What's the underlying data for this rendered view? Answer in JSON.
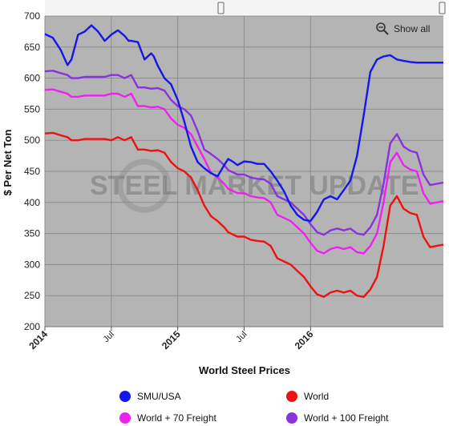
{
  "chart_data": {
    "type": "line",
    "title": "World Steel Prices",
    "xlabel": "World Steel Prices",
    "ylabel": "$ Per Net Ton",
    "ylim": [
      200,
      700
    ],
    "yticks": [
      200,
      250,
      300,
      350,
      400,
      450,
      500,
      550,
      600,
      650,
      700
    ],
    "xlim": [
      2014.0,
      2017.0
    ],
    "xticks": [
      {
        "label": "2014",
        "value": 2014.0,
        "major": true
      },
      {
        "label": "Jul",
        "value": 2014.5,
        "major": false
      },
      {
        "label": "2015",
        "value": 2015.0,
        "major": true
      },
      {
        "label": "Jul",
        "value": 2015.5,
        "major": false
      },
      {
        "label": "2016",
        "value": 2016.0,
        "major": true
      }
    ],
    "grid": true,
    "legend_position": "bottom",
    "watermark": "STEEL MARKET UPDATE",
    "zoom_button_label": "Show all",
    "series": [
      {
        "name": "SMU/USA",
        "color": "#1515ee",
        "x": [
          2014.0,
          2014.06,
          2014.12,
          2014.17,
          2014.2,
          2014.25,
          2014.3,
          2014.35,
          2014.4,
          2014.45,
          2014.5,
          2014.55,
          2014.6,
          2014.63,
          2014.65,
          2014.7,
          2014.75,
          2014.8,
          2014.82,
          2014.85,
          2014.9,
          2014.95,
          2015.0,
          2015.05,
          2015.1,
          2015.15,
          2015.2,
          2015.25,
          2015.3,
          2015.35,
          2015.38,
          2015.42,
          2015.45,
          2015.5,
          2015.55,
          2015.6,
          2015.65,
          2015.7,
          2015.75,
          2015.8,
          2015.85,
          2015.9,
          2015.95,
          2016.0,
          2016.05,
          2016.1,
          2016.15,
          2016.2,
          2016.25,
          2016.3,
          2016.35,
          2016.4,
          2016.45,
          2016.5,
          2016.55,
          2016.6,
          2016.65,
          2016.7,
          2016.75,
          2016.8,
          2016.85,
          2016.9,
          2016.95,
          2017.0
        ],
        "y": [
          671,
          665,
          645,
          621,
          630,
          670,
          675,
          685,
          675,
          660,
          670,
          677,
          668,
          660,
          660,
          658,
          630,
          640,
          635,
          620,
          600,
          590,
          565,
          530,
          490,
          465,
          455,
          447,
          442,
          460,
          470,
          465,
          460,
          466,
          465,
          462,
          462,
          450,
          435,
          418,
          395,
          380,
          372,
          370,
          385,
          405,
          410,
          405,
          420,
          435,
          475,
          540,
          610,
          630,
          635,
          637,
          630,
          628,
          626,
          625,
          625,
          625,
          625,
          625
        ]
      },
      {
        "name": "World",
        "color": "#ee1111",
        "x": [
          2014.0,
          2014.06,
          2014.12,
          2014.17,
          2014.2,
          2014.25,
          2014.3,
          2014.35,
          2014.4,
          2014.45,
          2014.5,
          2014.55,
          2014.6,
          2014.65,
          2014.7,
          2014.75,
          2014.8,
          2014.85,
          2014.9,
          2014.95,
          2015.0,
          2015.05,
          2015.1,
          2015.15,
          2015.2,
          2015.25,
          2015.3,
          2015.35,
          2015.38,
          2015.42,
          2015.45,
          2015.5,
          2015.55,
          2015.6,
          2015.65,
          2015.7,
          2015.75,
          2015.8,
          2015.85,
          2015.9,
          2015.95,
          2016.0,
          2016.05,
          2016.1,
          2016.15,
          2016.2,
          2016.25,
          2016.3,
          2016.35,
          2016.4,
          2016.45,
          2016.5,
          2016.55,
          2016.6,
          2016.65,
          2016.7,
          2016.75,
          2016.8,
          2016.85,
          2016.9,
          2016.95,
          2017.0
        ],
        "y": [
          511,
          512,
          508,
          505,
          500,
          500,
          502,
          502,
          502,
          502,
          500,
          505,
          500,
          505,
          485,
          485,
          483,
          484,
          480,
          465,
          455,
          450,
          440,
          420,
          395,
          378,
          370,
          360,
          352,
          348,
          345,
          345,
          340,
          338,
          337,
          330,
          310,
          305,
          300,
          290,
          280,
          265,
          252,
          248,
          255,
          258,
          255,
          258,
          250,
          248,
          260,
          280,
          330,
          395,
          410,
          390,
          383,
          380,
          345,
          328,
          330,
          332
        ]
      },
      {
        "name": "World + 70 Freight",
        "color": "#ee22ee",
        "x": [
          2014.0,
          2014.06,
          2014.12,
          2014.17,
          2014.2,
          2014.25,
          2014.3,
          2014.35,
          2014.4,
          2014.45,
          2014.5,
          2014.55,
          2014.6,
          2014.65,
          2014.7,
          2014.75,
          2014.8,
          2014.85,
          2014.9,
          2014.95,
          2015.0,
          2015.05,
          2015.1,
          2015.15,
          2015.2,
          2015.25,
          2015.3,
          2015.35,
          2015.38,
          2015.42,
          2015.45,
          2015.5,
          2015.55,
          2015.6,
          2015.65,
          2015.7,
          2015.75,
          2015.8,
          2015.85,
          2015.9,
          2015.95,
          2016.0,
          2016.05,
          2016.1,
          2016.15,
          2016.2,
          2016.25,
          2016.3,
          2016.35,
          2016.4,
          2016.45,
          2016.5,
          2016.55,
          2016.6,
          2016.65,
          2016.7,
          2016.75,
          2016.8,
          2016.85,
          2016.9,
          2016.95,
          2017.0
        ],
        "y": [
          581,
          582,
          578,
          575,
          570,
          570,
          572,
          572,
          572,
          572,
          575,
          575,
          570,
          575,
          555,
          555,
          553,
          554,
          550,
          535,
          525,
          520,
          510,
          490,
          470,
          448,
          440,
          430,
          422,
          418,
          415,
          415,
          410,
          408,
          407,
          400,
          380,
          375,
          370,
          360,
          350,
          335,
          322,
          318,
          325,
          328,
          325,
          328,
          320,
          318,
          330,
          350,
          400,
          465,
          480,
          460,
          453,
          450,
          415,
          398,
          400,
          402
        ]
      },
      {
        "name": "World + 100 Freight",
        "color": "#8833dd",
        "x": [
          2014.0,
          2014.06,
          2014.12,
          2014.17,
          2014.2,
          2014.25,
          2014.3,
          2014.35,
          2014.4,
          2014.45,
          2014.5,
          2014.55,
          2014.6,
          2014.65,
          2014.7,
          2014.75,
          2014.8,
          2014.85,
          2014.9,
          2014.95,
          2015.0,
          2015.05,
          2015.1,
          2015.15,
          2015.2,
          2015.25,
          2015.3,
          2015.35,
          2015.38,
          2015.42,
          2015.45,
          2015.5,
          2015.55,
          2015.6,
          2015.65,
          2015.7,
          2015.75,
          2015.8,
          2015.85,
          2015.9,
          2015.95,
          2016.0,
          2016.05,
          2016.1,
          2016.15,
          2016.2,
          2016.25,
          2016.3,
          2016.35,
          2016.4,
          2016.45,
          2016.5,
          2016.55,
          2016.6,
          2016.65,
          2016.7,
          2016.75,
          2016.8,
          2016.85,
          2016.9,
          2016.95,
          2017.0
        ],
        "y": [
          611,
          612,
          608,
          605,
          600,
          600,
          602,
          602,
          602,
          602,
          605,
          605,
          600,
          605,
          585,
          585,
          583,
          584,
          580,
          565,
          555,
          550,
          540,
          515,
          485,
          478,
          470,
          460,
          452,
          448,
          445,
          445,
          440,
          438,
          437,
          430,
          410,
          405,
          400,
          390,
          380,
          365,
          352,
          348,
          355,
          358,
          355,
          358,
          350,
          348,
          360,
          380,
          430,
          495,
          510,
          490,
          483,
          480,
          445,
          428,
          430,
          432
        ]
      }
    ]
  }
}
